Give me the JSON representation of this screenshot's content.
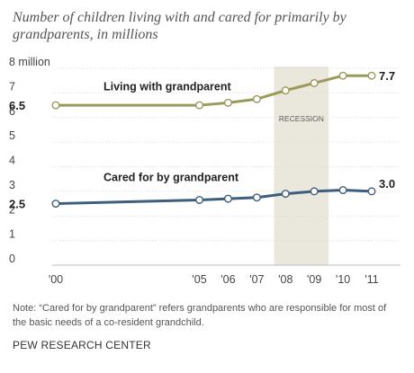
{
  "title": "Number of children living with and cared for primarily by grandparents, in millions",
  "note": "Note: “Cared for by grandparent” refers grandparents who are responsible for most of the basic needs of a co-resident grandchild.",
  "source": "PEW RESEARCH CENTER",
  "colors": {
    "living": "#9c9a5b",
    "cared": "#3d5f7d",
    "recession_band": "#eae7dd",
    "grid": "#dddddd",
    "text": "#333333"
  },
  "chart_data": {
    "type": "line",
    "x": [
      2000,
      2005,
      2006,
      2007,
      2008,
      2009,
      2010,
      2011
    ],
    "xtick_labels": [
      "'00",
      "'05",
      "'06",
      "'07",
      "'08",
      "'09",
      "'10",
      "'11"
    ],
    "ytick_values": [
      0,
      1,
      2,
      3,
      4,
      5,
      6,
      7,
      8
    ],
    "ytick_labels": [
      "0",
      "1",
      "2",
      "3",
      "4",
      "5",
      "6",
      "7",
      "8 million"
    ],
    "ylim": [
      0,
      8
    ],
    "grid": true,
    "recession": {
      "label": "RECESSION",
      "start": 2007.6,
      "end": 2009.5
    },
    "series": [
      {
        "name": "Living with grandparent",
        "values": [
          6.5,
          6.5,
          6.6,
          6.75,
          7.1,
          7.4,
          7.7,
          7.7
        ],
        "start_label": "6.5",
        "end_label": "7.7"
      },
      {
        "name": "Cared for by grandparent",
        "values": [
          2.5,
          2.65,
          2.7,
          2.75,
          2.9,
          3.0,
          3.05,
          3.0
        ],
        "start_label": "2.5",
        "end_label": "3.0"
      }
    ]
  }
}
